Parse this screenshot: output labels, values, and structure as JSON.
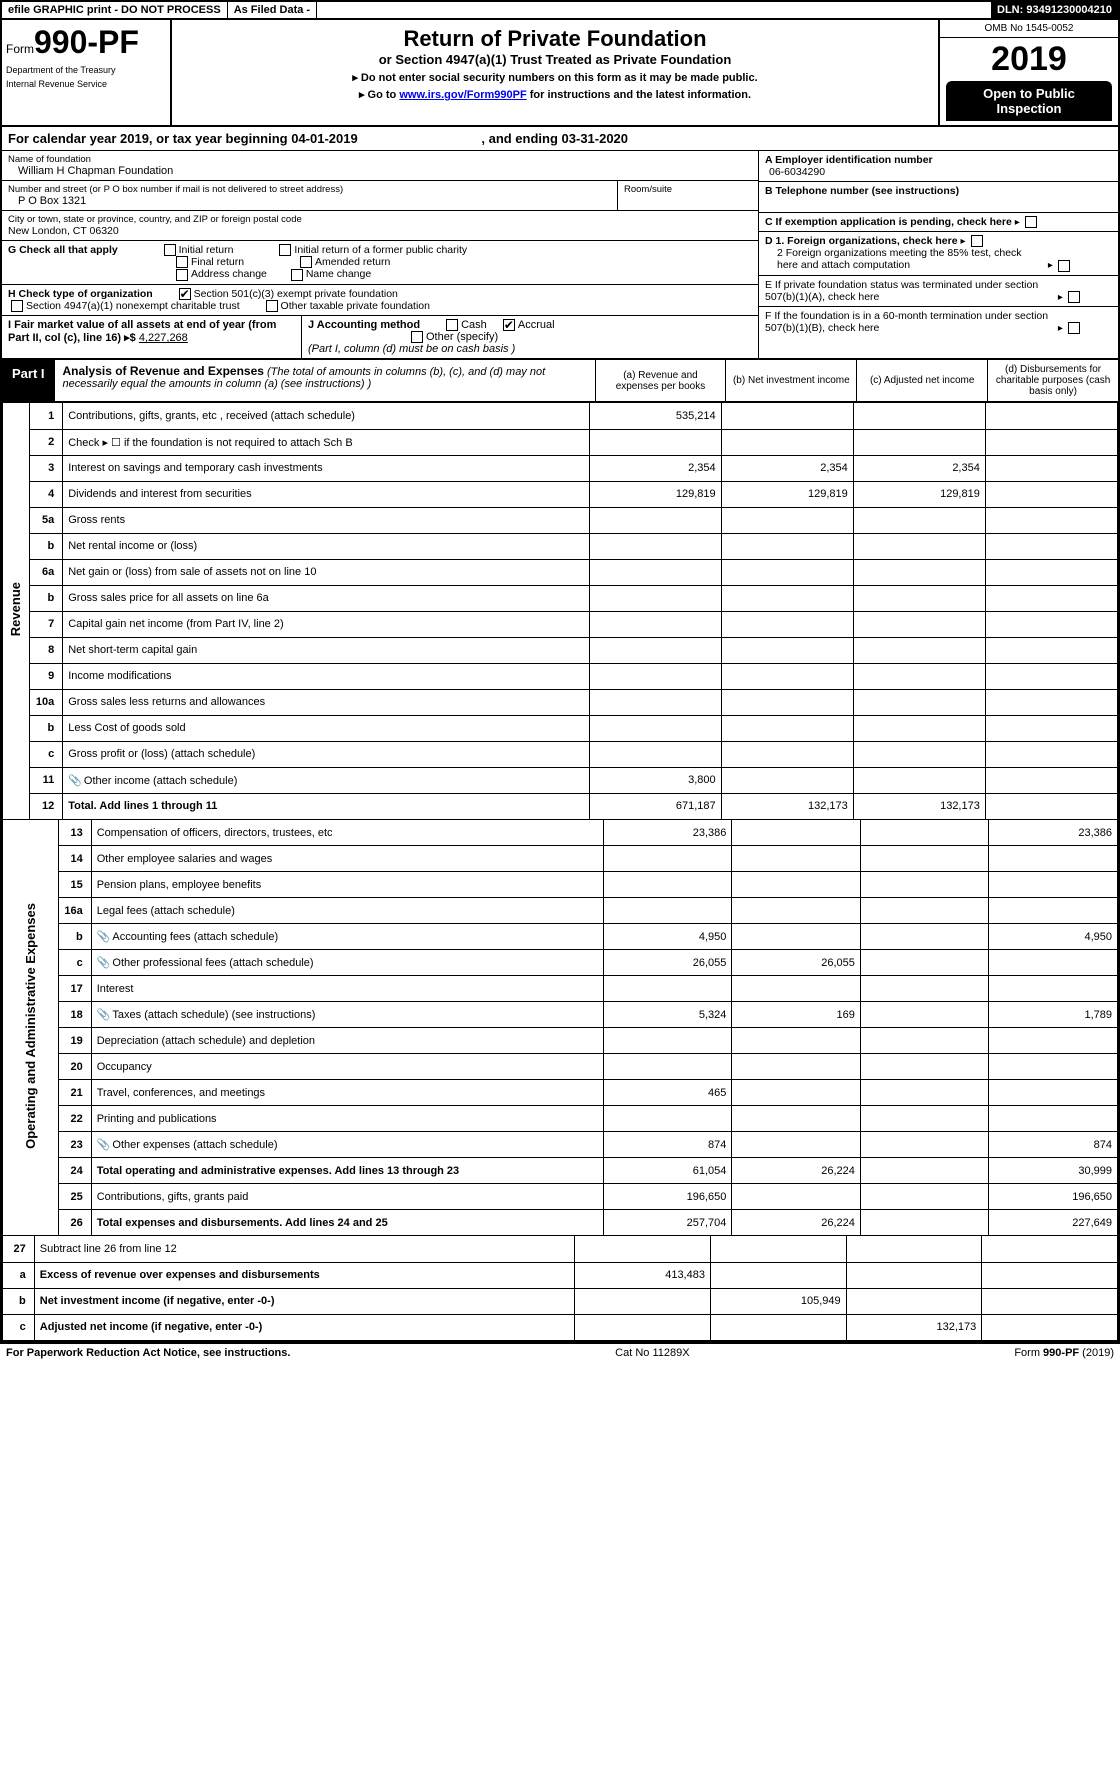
{
  "topbar": {
    "efile": "efile GRAPHIC print - DO NOT PROCESS",
    "asfiled": "As Filed Data -",
    "dln": "DLN: 93491230004210"
  },
  "header": {
    "form_prefix": "Form",
    "form_no": "990-PF",
    "dept1": "Department of the Treasury",
    "dept2": "Internal Revenue Service",
    "title": "Return of Private Foundation",
    "subtitle": "or Section 4947(a)(1) Trust Treated as Private Foundation",
    "note1": "▸ Do not enter social security numbers on this form as it may be made public.",
    "note2_a": "▸ Go to ",
    "note2_link": "www.irs.gov/Form990PF",
    "note2_b": " for instructions and the latest information.",
    "omb": "OMB No 1545-0052",
    "year": "2019",
    "inspect": "Open to Public Inspection"
  },
  "calyr": {
    "a": "For calendar year 2019, or tax year beginning 04-01-2019",
    "b": ", and ending 03-31-2020"
  },
  "foundation": {
    "name_lbl": "Name of foundation",
    "name": "William H Chapman Foundation",
    "addr_lbl": "Number and street (or P O  box number if mail is not delivered to street address)",
    "addr": "P O Box 1321",
    "room_lbl": "Room/suite",
    "city_lbl": "City or town, state or province, country, and ZIP or foreign postal code",
    "city": "New London, CT  06320"
  },
  "right": {
    "a_lbl": "A Employer identification number",
    "a_val": "06-6034290",
    "b_lbl": "B Telephone number (see instructions)",
    "c_lbl": "C If exemption application is pending, check here",
    "d1": "D 1. Foreign organizations, check here",
    "d2": "2 Foreign organizations meeting the 85% test, check here and attach computation",
    "e": "E  If private foundation status was terminated under section 507(b)(1)(A), check here",
    "f": "F  If the foundation is in a 60-month termination under section 507(b)(1)(B), check here"
  },
  "g": {
    "lbl": "G Check all that apply",
    "o1": "Initial return",
    "o2": "Initial return of a former public charity",
    "o3": "Final return",
    "o4": "Amended return",
    "o5": "Address change",
    "o6": "Name change"
  },
  "h": {
    "lbl": "H Check type of organization",
    "o1": "Section 501(c)(3) exempt private foundation",
    "o2": "Section 4947(a)(1) nonexempt charitable trust",
    "o3": "Other taxable private foundation"
  },
  "i": {
    "lbl": "I Fair market value of all assets at end of year (from Part II, col  (c), line 16) ▸$",
    "val": "4,227,268"
  },
  "j": {
    "lbl": "J Accounting method",
    "o1": "Cash",
    "o2": "Accrual",
    "o3": "Other (specify)",
    "note": "(Part I, column (d) must be on cash basis )"
  },
  "part1": {
    "tag": "Part I",
    "title": "Analysis of Revenue and Expenses",
    "sub": " (The total of amounts in columns (b), (c), and (d) may not necessarily equal the amounts in column (a) (see instructions) )",
    "col_a": "(a)    Revenue and expenses per books",
    "col_b": "(b)    Net investment income",
    "col_c": "(c)    Adjusted net income",
    "col_d": "(d)    Disbursements for charitable purposes (cash basis only)"
  },
  "sections": {
    "revenue": "Revenue",
    "expenses": "Operating and Administrative Expenses"
  },
  "rows": [
    {
      "n": "1",
      "d": "Contributions, gifts, grants, etc , received (attach schedule)",
      "a": "535,214",
      "b": "",
      "c": "",
      "dd": ""
    },
    {
      "n": "2",
      "d": "Check ▸ ☐ if the foundation is not required to attach Sch  B",
      "a": "",
      "b": "",
      "c": "",
      "dd": ""
    },
    {
      "n": "3",
      "d": "Interest on savings and temporary cash investments",
      "a": "2,354",
      "b": "2,354",
      "c": "2,354",
      "dd": ""
    },
    {
      "n": "4",
      "d": "Dividends and interest from securities",
      "a": "129,819",
      "b": "129,819",
      "c": "129,819",
      "dd": ""
    },
    {
      "n": "5a",
      "d": "Gross rents",
      "a": "",
      "b": "",
      "c": "",
      "dd": ""
    },
    {
      "n": "b",
      "d": "Net rental income or (loss)",
      "a": "",
      "b": "",
      "c": "",
      "dd": ""
    },
    {
      "n": "6a",
      "d": "Net gain or (loss) from sale of assets not on line 10",
      "a": "",
      "b": "",
      "c": "",
      "dd": ""
    },
    {
      "n": "b",
      "d": "Gross sales price for all assets on line 6a",
      "a": "",
      "b": "",
      "c": "",
      "dd": ""
    },
    {
      "n": "7",
      "d": "Capital gain net income (from Part IV, line 2)",
      "a": "",
      "b": "",
      "c": "",
      "dd": ""
    },
    {
      "n": "8",
      "d": "Net short-term capital gain",
      "a": "",
      "b": "",
      "c": "",
      "dd": ""
    },
    {
      "n": "9",
      "d": "Income modifications",
      "a": "",
      "b": "",
      "c": "",
      "dd": ""
    },
    {
      "n": "10a",
      "d": "Gross sales less returns and allowances",
      "a": "",
      "b": "",
      "c": "",
      "dd": ""
    },
    {
      "n": "b",
      "d": "Less  Cost of goods sold",
      "a": "",
      "b": "",
      "c": "",
      "dd": ""
    },
    {
      "n": "c",
      "d": "Gross profit or (loss) (attach schedule)",
      "a": "",
      "b": "",
      "c": "",
      "dd": ""
    },
    {
      "n": "11",
      "d": "Other income (attach schedule)",
      "a": "3,800",
      "b": "",
      "c": "",
      "dd": "",
      "icon": true
    },
    {
      "n": "12",
      "d": "Total. Add lines 1 through 11",
      "a": "671,187",
      "b": "132,173",
      "c": "132,173",
      "dd": "",
      "bold": true
    }
  ],
  "exp": [
    {
      "n": "13",
      "d": "Compensation of officers, directors, trustees, etc",
      "a": "23,386",
      "b": "",
      "c": "",
      "dd": "23,386"
    },
    {
      "n": "14",
      "d": "Other employee salaries and wages",
      "a": "",
      "b": "",
      "c": "",
      "dd": ""
    },
    {
      "n": "15",
      "d": "Pension plans, employee benefits",
      "a": "",
      "b": "",
      "c": "",
      "dd": ""
    },
    {
      "n": "16a",
      "d": "Legal fees (attach schedule)",
      "a": "",
      "b": "",
      "c": "",
      "dd": ""
    },
    {
      "n": "b",
      "d": "Accounting fees (attach schedule)",
      "a": "4,950",
      "b": "",
      "c": "",
      "dd": "4,950",
      "icon": true
    },
    {
      "n": "c",
      "d": "Other professional fees (attach schedule)",
      "a": "26,055",
      "b": "26,055",
      "c": "",
      "dd": "",
      "icon": true
    },
    {
      "n": "17",
      "d": "Interest",
      "a": "",
      "b": "",
      "c": "",
      "dd": ""
    },
    {
      "n": "18",
      "d": "Taxes (attach schedule) (see instructions)",
      "a": "5,324",
      "b": "169",
      "c": "",
      "dd": "1,789",
      "icon": true
    },
    {
      "n": "19",
      "d": "Depreciation (attach schedule) and depletion",
      "a": "",
      "b": "",
      "c": "",
      "dd": ""
    },
    {
      "n": "20",
      "d": "Occupancy",
      "a": "",
      "b": "",
      "c": "",
      "dd": ""
    },
    {
      "n": "21",
      "d": "Travel, conferences, and meetings",
      "a": "465",
      "b": "",
      "c": "",
      "dd": ""
    },
    {
      "n": "22",
      "d": "Printing and publications",
      "a": "",
      "b": "",
      "c": "",
      "dd": ""
    },
    {
      "n": "23",
      "d": "Other expenses (attach schedule)",
      "a": "874",
      "b": "",
      "c": "",
      "dd": "874",
      "icon": true
    },
    {
      "n": "24",
      "d": "Total operating and administrative expenses. Add lines 13 through 23",
      "a": "61,054",
      "b": "26,224",
      "c": "",
      "dd": "30,999",
      "bold": true
    },
    {
      "n": "25",
      "d": "Contributions, gifts, grants paid",
      "a": "196,650",
      "b": "",
      "c": "",
      "dd": "196,650"
    },
    {
      "n": "26",
      "d": "Total expenses and disbursements. Add lines 24 and 25",
      "a": "257,704",
      "b": "26,224",
      "c": "",
      "dd": "227,649",
      "bold": true
    }
  ],
  "bottom": [
    {
      "n": "27",
      "d": "Subtract line 26 from line 12",
      "a": "",
      "b": "",
      "c": "",
      "dd": ""
    },
    {
      "n": "a",
      "d": "Excess of revenue over expenses and disbursements",
      "a": "413,483",
      "b": "",
      "c": "",
      "dd": "",
      "bold": true
    },
    {
      "n": "b",
      "d": "Net investment income (if negative, enter -0-)",
      "a": "",
      "b": "105,949",
      "c": "",
      "dd": "",
      "bold": true
    },
    {
      "n": "c",
      "d": "Adjusted net income (if negative, enter -0-)",
      "a": "",
      "b": "",
      "c": "132,173",
      "dd": "",
      "bold": true
    }
  ],
  "footer": {
    "l": "For Paperwork Reduction Act Notice, see instructions.",
    "c": "Cat  No  11289X",
    "r": "Form 990-PF (2019)"
  }
}
